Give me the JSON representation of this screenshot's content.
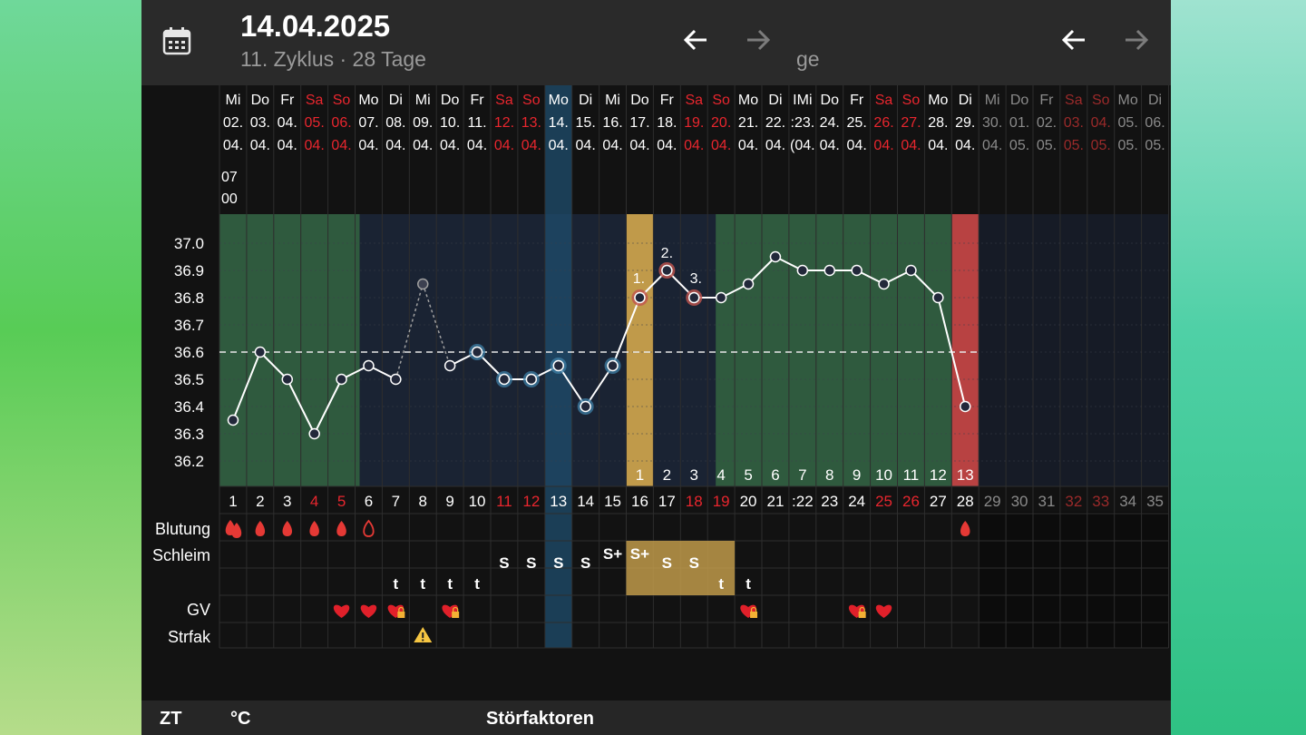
{
  "header": {
    "date": "14.04.2025",
    "subtitle": "11. Zyklus · 28 Tage",
    "fragment": "ge"
  },
  "days": [
    {
      "wd": "Mi",
      "dd": "02.",
      "mm": "04."
    },
    {
      "wd": "Do",
      "dd": "03.",
      "mm": "04."
    },
    {
      "wd": "Fr",
      "dd": "04.",
      "mm": "04."
    },
    {
      "wd": "Sa",
      "dd": "05.",
      "mm": "04."
    },
    {
      "wd": "So",
      "dd": "06.",
      "mm": "04."
    },
    {
      "wd": "Mo",
      "dd": "07.",
      "mm": "04."
    },
    {
      "wd": "Di",
      "dd": "08.",
      "mm": "04."
    },
    {
      "wd": "Mi",
      "dd": "09.",
      "mm": "04."
    },
    {
      "wd": "Do",
      "dd": "10.",
      "mm": "04."
    },
    {
      "wd": "Fr",
      "dd": "11.",
      "mm": "04."
    },
    {
      "wd": "Sa",
      "dd": "12.",
      "mm": "04."
    },
    {
      "wd": "So",
      "dd": "13.",
      "mm": "04."
    },
    {
      "wd": "Mo",
      "dd": "14.",
      "mm": "04."
    },
    {
      "wd": "Di",
      "dd": "15.",
      "mm": "04."
    },
    {
      "wd": "Mi",
      "dd": "16.",
      "mm": "04."
    },
    {
      "wd": "Do",
      "dd": "17.",
      "mm": "04."
    },
    {
      "wd": "Fr",
      "dd": "18.",
      "mm": "04."
    },
    {
      "wd": "Sa",
      "dd": "19.",
      "mm": "04."
    },
    {
      "wd": "So",
      "dd": "20.",
      "mm": "04."
    },
    {
      "wd": "Mo",
      "dd": "21.",
      "mm": "04."
    },
    {
      "wd": "Di",
      "dd": "22.",
      "mm": "04."
    },
    {
      "wd": "IMi",
      "dd": ":23.",
      "mm": "(04."
    },
    {
      "wd": "Do",
      "dd": "24.",
      "mm": "04."
    },
    {
      "wd": "Fr",
      "dd": "25.",
      "mm": "04."
    },
    {
      "wd": "Sa",
      "dd": "26.",
      "mm": "04."
    },
    {
      "wd": "So",
      "dd": "27.",
      "mm": "04."
    },
    {
      "wd": "Mo",
      "dd": "28.",
      "mm": "04."
    },
    {
      "wd": "Di",
      "dd": "29.",
      "mm": "04."
    },
    {
      "wd": "Mi",
      "dd": "30.",
      "mm": "04."
    },
    {
      "wd": "Do",
      "dd": "01.",
      "mm": "05."
    },
    {
      "wd": "Fr",
      "dd": "02.",
      "mm": "05."
    },
    {
      "wd": "Sa",
      "dd": "03.",
      "mm": "05."
    },
    {
      "wd": "So",
      "dd": "04.",
      "mm": "05."
    },
    {
      "wd": "Mo",
      "dd": "05.",
      "mm": "05."
    },
    {
      "wd": "Di",
      "dd": "06.",
      "mm": "05."
    }
  ],
  "first_time": [
    "07",
    "00"
  ],
  "cycle_days": [
    "1",
    "2",
    "3",
    "4",
    "5",
    "6",
    "7",
    "8",
    "9",
    "10",
    "11",
    "12",
    "13",
    "14",
    "15",
    "16",
    "17",
    "18",
    "19",
    "20",
    "21",
    ":22",
    "23",
    "24",
    "25",
    "26",
    "27",
    "28",
    "29",
    "30",
    "31",
    "32",
    "33",
    "34",
    "35"
  ],
  "phase_numbers": [
    "1",
    "2",
    "3",
    "4",
    "5",
    "6",
    "7",
    "8",
    "9",
    "10",
    "11",
    "12",
    "13"
  ],
  "shift_labels": [
    "1.",
    "2.",
    "3."
  ],
  "y_ticks": [
    "37.0",
    "36.9",
    "36.8",
    "36.7",
    "36.6",
    "36.5",
    "36.4",
    "36.3",
    "36.2"
  ],
  "row_labels": {
    "bleeding": "Blutung",
    "mucus": "Schleim",
    "gv": "GV",
    "disturb": "Strfak"
  },
  "mucus_s": [
    "S",
    "S",
    "S",
    "S",
    "S+",
    "S+",
    "S",
    "S"
  ],
  "mucus_t": [
    "t",
    "t",
    "t",
    "t",
    "t",
    "t"
  ],
  "footer": {
    "zt": "ZT",
    "unit": "°C",
    "disturb": "Störfaktoren"
  },
  "colors": {
    "weekend": "#e8262e",
    "fertile_green": "#2f5a3e",
    "today_blue": "#1f4e6e",
    "ovulation_gold": "#c09a4a",
    "period_red": "#b84242",
    "line": "#ffffff"
  },
  "chart_data": {
    "type": "line",
    "title": "",
    "xlabel": "",
    "ylabel": "",
    "ylim": [
      36.2,
      37.0
    ],
    "coverline": 36.6,
    "x": [
      1,
      2,
      3,
      4,
      5,
      6,
      7,
      8,
      9,
      10,
      11,
      12,
      13,
      14,
      15,
      16,
      17,
      18,
      19,
      20,
      21,
      22,
      23,
      24,
      25,
      26,
      27,
      28
    ],
    "values": [
      36.35,
      36.6,
      36.5,
      36.3,
      36.5,
      36.55,
      36.5,
      36.85,
      36.55,
      36.6,
      36.5,
      36.5,
      36.55,
      36.4,
      36.55,
      36.8,
      36.9,
      36.8,
      36.8,
      36.85,
      36.95,
      36.9,
      36.9,
      36.9,
      36.85,
      36.9,
      36.8,
      36.4
    ],
    "excluded_days": [
      8
    ],
    "shift_days": [
      16,
      17,
      18
    ],
    "grid": true,
    "legend": "none"
  }
}
